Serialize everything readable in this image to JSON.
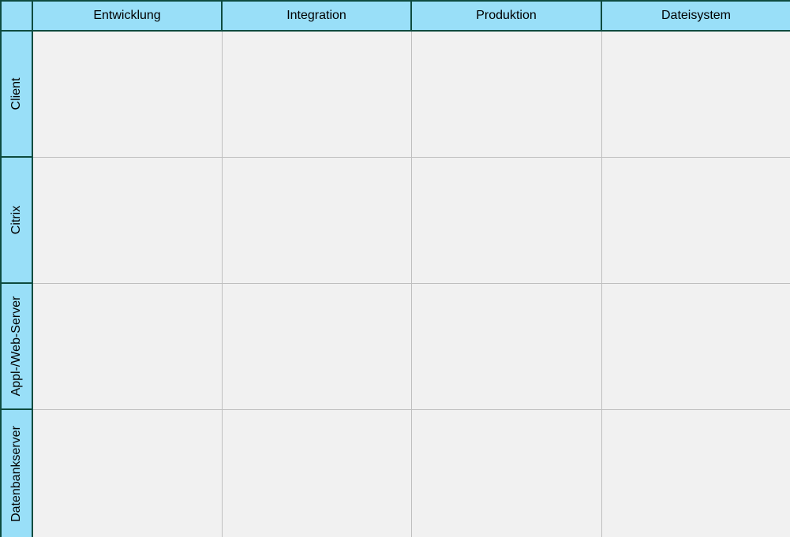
{
  "matrix": {
    "corner_label": "",
    "column_headers": [
      "Entwicklung",
      "Integration",
      "Produktion",
      "Dateisystem"
    ],
    "row_headers": [
      "Client",
      "Citrix",
      "Appl-/Web-Server",
      "Datenbankserver"
    ]
  },
  "colors": {
    "header_fill": "#99dff8",
    "header_border": "#0e4b3f",
    "lane_fill": "#f1f1f1",
    "lane_grid": "#bfbfbf",
    "text": "#000000"
  }
}
